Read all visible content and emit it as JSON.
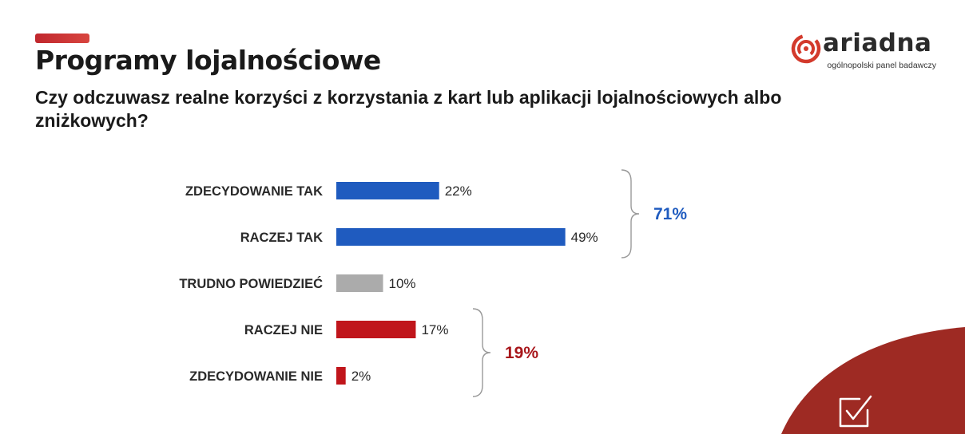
{
  "header": {
    "title": "Programy lojalnościowe",
    "question": "Czy odczuwasz realne korzyści z korzystania z kart lub aplikacji lojalnościowych albo zniżkowych?"
  },
  "logo": {
    "wordmark": "ariadna",
    "tagline": "ogólnopolski panel badawczy"
  },
  "colors": {
    "accent": "#c0272d",
    "positive": "#1f5bbf",
    "neutral": "#ababab",
    "negative": "#c0151b",
    "corner": "#9e2a23"
  },
  "chart_data": {
    "type": "bar",
    "orientation": "horizontal",
    "categories": [
      "ZDECYDOWANIE TAK",
      "RACZEJ TAK",
      "TRUDNO POWIEDZIEĆ",
      "RACZEJ NIE",
      "ZDECYDOWANIE NIE"
    ],
    "values": [
      22,
      49,
      10,
      17,
      2
    ],
    "value_labels": [
      "22%",
      "49%",
      "10%",
      "17%",
      "2%"
    ],
    "bar_colors": [
      "#1f5bbf",
      "#1f5bbf",
      "#ababab",
      "#c0151b",
      "#c0151b"
    ],
    "xlim": [
      0,
      50
    ],
    "grid": false,
    "groups": [
      {
        "label": "71%",
        "from": 0,
        "to": 1,
        "color": "#1f5bbf"
      },
      {
        "label": "19%",
        "from": 3,
        "to": 4,
        "color": "#a8161b"
      }
    ]
  },
  "icons": {
    "corner": "checkbox-check-icon"
  }
}
